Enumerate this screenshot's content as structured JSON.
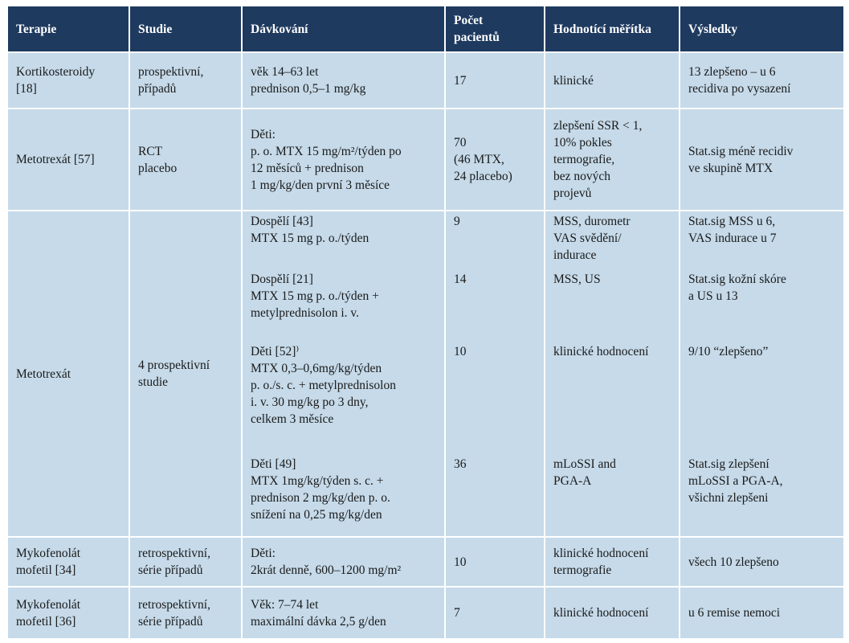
{
  "table": {
    "header": [
      [
        "Terapie"
      ],
      [
        "Studie"
      ],
      [
        "Dávkování"
      ],
      [
        "Počet",
        "pacientů"
      ],
      [
        "Hodnotící měřítka"
      ],
      [
        "Výsledky"
      ]
    ],
    "rows": [
      {
        "therapy": [
          "Kortikosteroidy",
          "[18]"
        ],
        "study": [
          "prospektivní,",
          "případů"
        ],
        "entries": [
          {
            "dosing": [
              "věk 14–63 let",
              "prednison 0,5–1 mg/kg"
            ],
            "patients": [
              "17"
            ],
            "measures": [
              "klinické"
            ],
            "results": [
              "13 zlepšeno – u 6",
              "recidiva po vysazení"
            ]
          }
        ]
      },
      {
        "therapy": [
          "Metotrexát [57]"
        ],
        "study": [
          "RCT",
          "placebo"
        ],
        "entries": [
          {
            "dosing": [
              "Děti:",
              "p. o. MTX 15 mg/m²/týden po",
              "12 měsíců + prednison",
              "1 mg/kg/den první 3 měsíce"
            ],
            "patients": [
              "70",
              "(46 MTX,",
              "24 placebo)"
            ],
            "measures": [
              "zlepšení SSR < 1,",
              "10% pokles",
              "termografie,",
              "bez nových",
              "projevů"
            ],
            "results": [
              "Stat.sig méně recidiv",
              "ve skupině MTX"
            ]
          }
        ]
      },
      {
        "therapy": [
          "Metotrexát"
        ],
        "study": [
          "4 prospektivní",
          "studie"
        ],
        "entries": [
          {
            "dosing": [
              "Dospělí [43]",
              "MTX 15 mg p. o./týden"
            ],
            "patients": [
              "9"
            ],
            "measures": [
              "MSS, durometr",
              "VAS svědění/",
              "indurace"
            ],
            "results": [
              "Stat.sig MSS u 6,",
              "VAS indurace u 7"
            ]
          },
          {
            "dosing": [
              "Dospělí [21]",
              "MTX 15 mg p. o./týden +",
              "metylprednisolon i. v."
            ],
            "patients": [
              "14"
            ],
            "measures": [
              "MSS, US"
            ],
            "results": [
              "Stat.sig kožní skóre",
              "a US u 13"
            ]
          },
          {
            "dosing": [
              "Děti [52]⁾",
              "MTX 0,3–0,6mg/kg/týden",
              "p. o./s. c. + metylprednisolon",
              "i. v. 30 mg/kg po 3 dny,",
              "celkem 3 měsíce"
            ],
            "patients": [
              "10"
            ],
            "measures": [
              "klinické hodnocení"
            ],
            "results": [
              "9/10 “zlepšeno”"
            ]
          },
          {
            "dosing": [
              "Děti [49]",
              "MTX 1mg/kg/týden s. c. +",
              "prednison 2 mg/kg/den p. o.",
              "snížení na 0,25 mg/kg/den"
            ],
            "patients": [
              "36"
            ],
            "measures": [
              "mLoSSI and",
              "PGA-A"
            ],
            "results": [
              "Stat.sig zlepšení",
              "mLoSSI a PGA-A,",
              "všichni zlepšeni"
            ]
          }
        ]
      },
      {
        "therapy": [
          "Mykofenolát",
          "mofetil [34]"
        ],
        "study": [
          "retrospektivní,",
          "série případů"
        ],
        "entries": [
          {
            "dosing": [
              "Děti:",
              "2krát denně, 600–1200 mg/m²"
            ],
            "patients": [
              "10"
            ],
            "measures": [
              "klinické hodnocení",
              "termografie"
            ],
            "results": [
              "všech 10 zlepšeno"
            ]
          }
        ]
      },
      {
        "therapy": [
          "Mykofenolát",
          "mofetil [36]"
        ],
        "study": [
          "retrospektivní,",
          "série případů"
        ],
        "entries": [
          {
            "dosing": [
              "Věk: 7–74 let",
              "maximální dávka 2,5 g/den"
            ],
            "patients": [
              "7"
            ],
            "measures": [
              "klinické hodnocení"
            ],
            "results": [
              "u 6 remise nemoci"
            ]
          }
        ]
      }
    ]
  }
}
